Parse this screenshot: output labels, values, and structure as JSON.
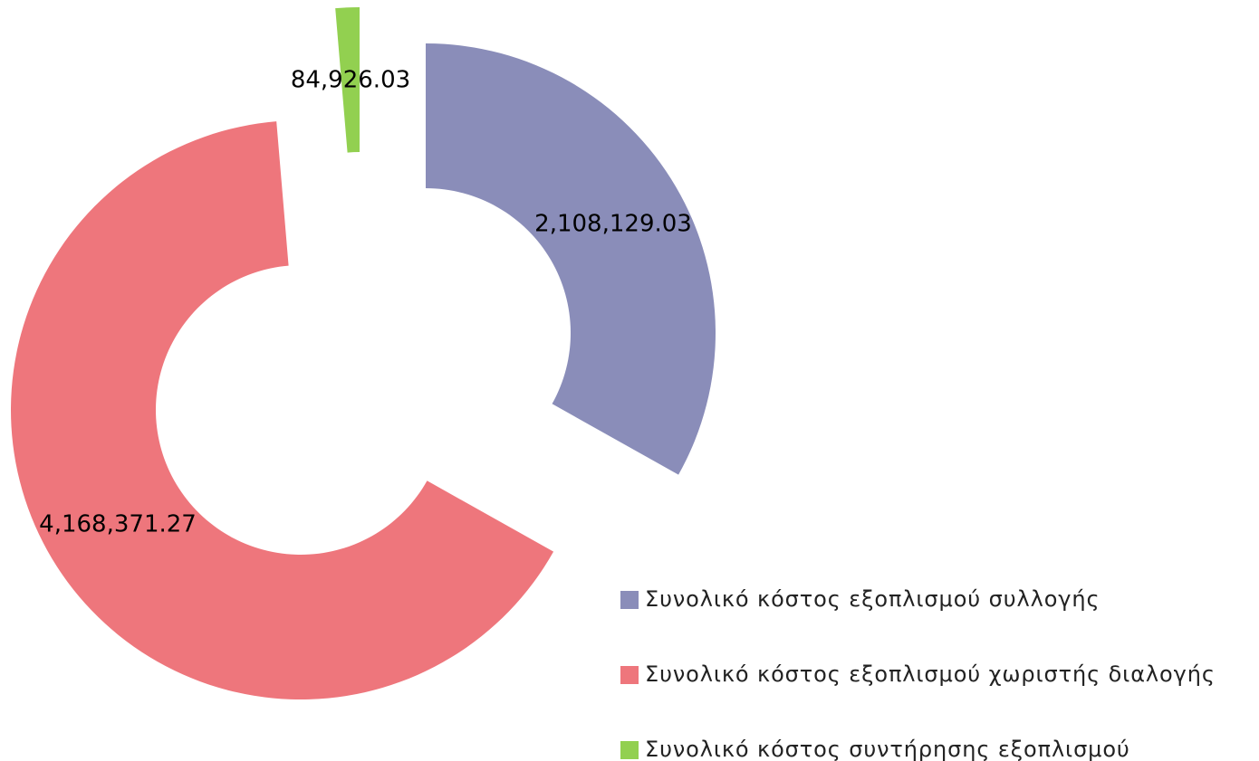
{
  "chart_data": {
    "type": "donut",
    "categories": [
      "Συνολικό κόστος εξοπλισμού συλλογής",
      "Συνολικό κόστος εξοπλισμού χωριστής διαλογής",
      "Συνολικό κόστος συντήρησης εξοπλισμού"
    ],
    "values": [
      2108129.03,
      4168371.27,
      84926.03
    ],
    "value_labels": [
      "2,108,129.03",
      "4,168,371.27",
      "84,926.03"
    ],
    "colors": [
      "#8a8db9",
      "#ee767c",
      "#92d050"
    ],
    "legend": "bottom-right"
  }
}
